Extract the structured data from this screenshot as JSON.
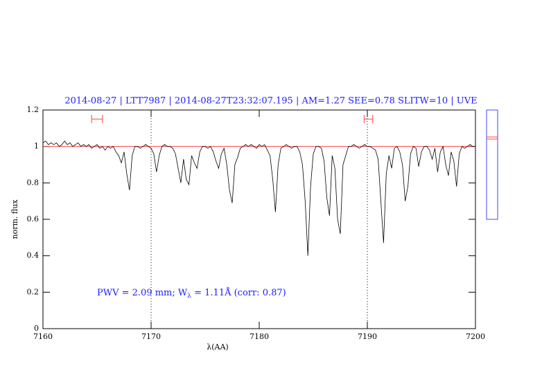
{
  "chart_data": {
    "type": "line",
    "title": "2014-08-27 | LTT7987 | 2014-08-27T23:32:07.195 | AM=1.27 SEE=0.78 SLITW=10 | UVE",
    "xlabel": "λ(AA)",
    "ylabel": "norm. flux",
    "annotation": [
      "PWV = 2.09 mm; W",
      "λ",
      " = 1.11Å (corr: 0.87)"
    ],
    "xlim": [
      7160,
      7200
    ],
    "ylim": [
      0,
      1.2
    ],
    "xticks": [
      7160,
      7170,
      7180,
      7190,
      7200
    ],
    "yticks": [
      0,
      0.2,
      0.4,
      0.6,
      0.8,
      1,
      1.2
    ],
    "reference": 1,
    "reference_color": "#ff4040",
    "vlines": [
      7170,
      7190
    ],
    "intervals": [
      [
        7164.5,
        7165.5
      ],
      [
        7189.7,
        7190.5
      ]
    ],
    "interval_y": 1.15,
    "interval_color": "#ff4040",
    "series": [
      {
        "color": "#000000",
        "x": [
          7160,
          7160.25,
          7160.5,
          7160.75,
          7161,
          7161.25,
          7161.5,
          7161.75,
          7162,
          7162.25,
          7162.5,
          7162.75,
          7163,
          7163.25,
          7163.5,
          7163.75,
          7164,
          7164.25,
          7164.5,
          7164.75,
          7165,
          7165.25,
          7165.5,
          7165.75,
          7166,
          7166.25,
          7166.5,
          7166.75,
          7167,
          7167.25,
          7167.5,
          7167.75,
          7168,
          7168.25,
          7168.5,
          7168.75,
          7169,
          7169.25,
          7169.5,
          7169.75,
          7170,
          7170.25,
          7170.5,
          7170.75,
          7171,
          7171.25,
          7171.5,
          7171.75,
          7172,
          7172.25,
          7172.5,
          7172.75,
          7173,
          7173.25,
          7173.5,
          7173.75,
          7174,
          7174.25,
          7174.5,
          7174.75,
          7175,
          7175.25,
          7175.5,
          7175.75,
          7176,
          7176.25,
          7176.5,
          7176.75,
          7177,
          7177.25,
          7177.5,
          7177.75,
          7178,
          7178.25,
          7178.5,
          7178.75,
          7179,
          7179.25,
          7179.5,
          7179.75,
          7180,
          7180.25,
          7180.5,
          7180.75,
          7181,
          7181.25,
          7181.5,
          7181.75,
          7182,
          7182.25,
          7182.5,
          7182.75,
          7183,
          7183.25,
          7183.5,
          7183.75,
          7184,
          7184.25,
          7184.5,
          7184.75,
          7185,
          7185.25,
          7185.5,
          7185.75,
          7186,
          7186.25,
          7186.5,
          7186.75,
          7187,
          7187.25,
          7187.5,
          7187.75,
          7188,
          7188.25,
          7188.5,
          7188.75,
          7189,
          7189.25,
          7189.5,
          7189.75,
          7190,
          7190.25,
          7190.5,
          7190.75,
          7191,
          7191.25,
          7191.5,
          7191.75,
          7192,
          7192.25,
          7192.5,
          7192.75,
          7193,
          7193.25,
          7193.5,
          7193.75,
          7194,
          7194.25,
          7194.5,
          7194.75,
          7195,
          7195.25,
          7195.5,
          7195.75,
          7196,
          7196.25,
          7196.5,
          7196.75,
          7197,
          7197.25,
          7197.5,
          7197.75,
          7198,
          7198.25,
          7198.5,
          7198.75,
          7199,
          7199.25,
          7199.5,
          7199.75,
          7200
        ],
        "values": [
          1.02,
          1.03,
          1.01,
          1.02,
          1.01,
          1.02,
          1.0,
          1.01,
          1.03,
          1.01,
          1.02,
          1.0,
          1.01,
          1.02,
          1.0,
          1.01,
          1.0,
          1.01,
          0.99,
          1.0,
          1.01,
          0.99,
          1.0,
          0.98,
          1.0,
          0.99,
          1.0,
          0.97,
          0.95,
          0.91,
          0.97,
          0.85,
          0.76,
          0.95,
          1.0,
          1.0,
          0.99,
          1.0,
          1.01,
          1.0,
          0.99,
          0.96,
          0.86,
          0.95,
          1.0,
          1.01,
          1.0,
          1.0,
          0.99,
          0.96,
          0.88,
          0.8,
          0.93,
          0.82,
          0.79,
          0.95,
          0.91,
          0.88,
          0.97,
          1.0,
          1.0,
          0.99,
          1.0,
          0.97,
          0.92,
          0.88,
          0.96,
          0.99,
          0.9,
          0.76,
          0.69,
          0.9,
          0.94,
          0.99,
          1.0,
          1.01,
          1.0,
          1.01,
          1.0,
          0.99,
          1.01,
          1.0,
          1.01,
          0.98,
          0.95,
          0.82,
          0.64,
          0.9,
          0.99,
          1.0,
          1.01,
          1.0,
          0.99,
          1.0,
          1.0,
          0.97,
          0.9,
          0.7,
          0.4,
          0.78,
          0.96,
          1.0,
          1.0,
          0.99,
          0.92,
          0.72,
          0.62,
          0.95,
          0.88,
          0.6,
          0.52,
          0.9,
          0.95,
          1.0,
          1.0,
          1.01,
          1.0,
          0.99,
          1.0,
          1.01,
          1.0,
          1.0,
          0.99,
          0.98,
          0.93,
          0.7,
          0.47,
          0.85,
          0.95,
          0.88,
          0.99,
          1.0,
          0.97,
          0.9,
          0.7,
          0.78,
          0.96,
          1.0,
          0.99,
          0.89,
          0.97,
          1.0,
          1.0,
          0.98,
          0.93,
          0.99,
          0.86,
          0.97,
          1.0,
          0.9,
          0.84,
          0.97,
          0.92,
          0.78,
          0.96,
          1.0,
          0.99,
          1.0,
          1.01,
          1.0,
          1.0
        ]
      }
    ]
  }
}
